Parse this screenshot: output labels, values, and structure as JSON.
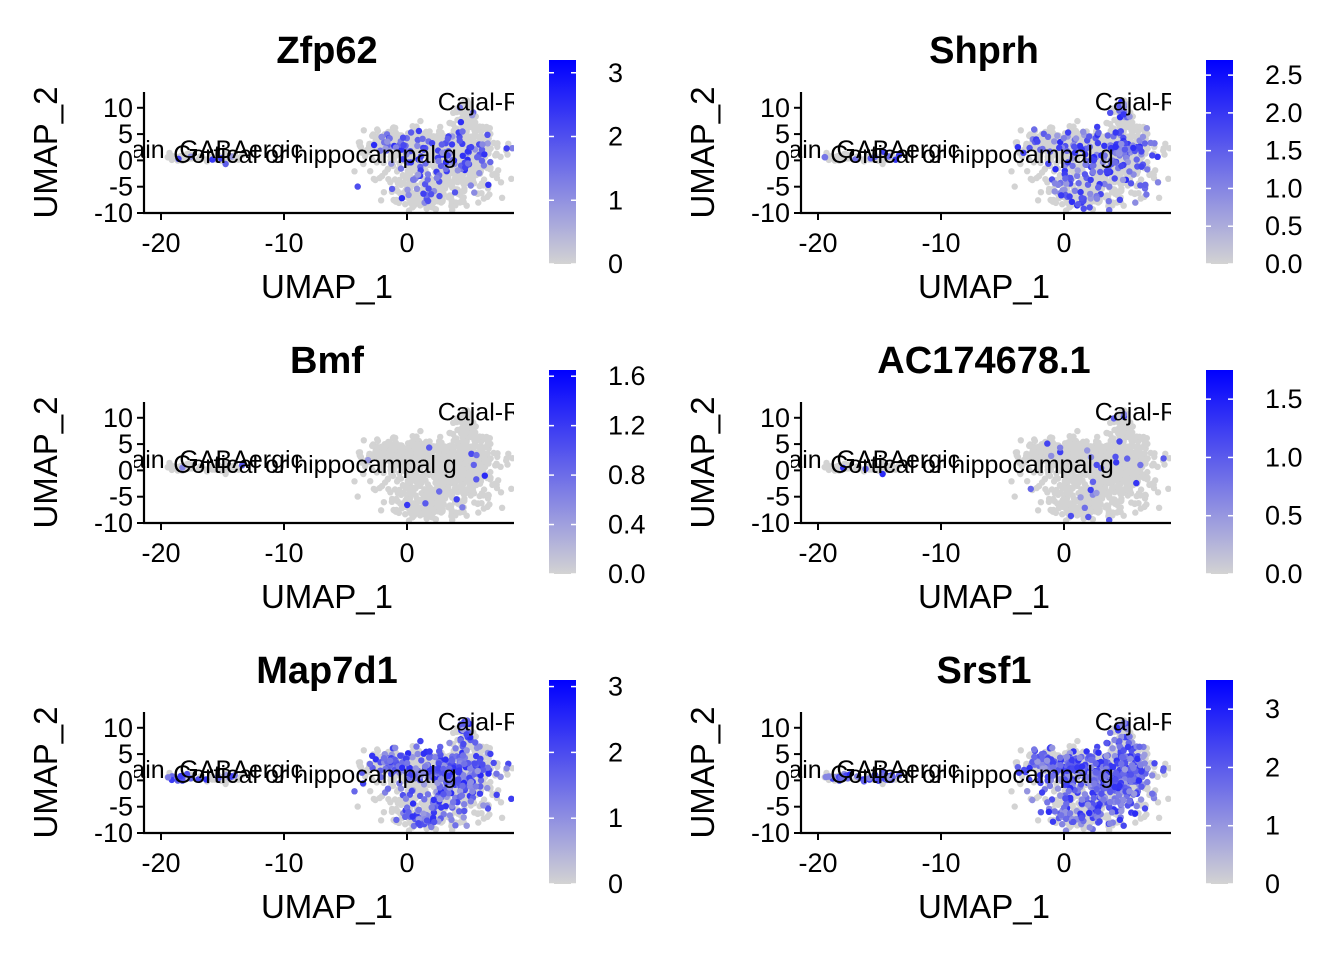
{
  "figure": {
    "type": "feature-plot-grid",
    "gradient_colors": {
      "low": "#d3d3d3",
      "high": "#0000ff"
    },
    "point_color_base": "#d3d3d3"
  },
  "chart_data": [
    {
      "type": "scatter",
      "title": "Zfp62",
      "xlabel": "UMAP_1",
      "ylabel": "UMAP_2",
      "xlim": [
        -22,
        9
      ],
      "ylim": [
        -10,
        13
      ],
      "xticks": [
        -20,
        -10,
        0
      ],
      "yticks": [
        10,
        5,
        0,
        -5,
        -10
      ],
      "cluster_labels": [
        {
          "text": "Cajal-Retz",
          "x": 2.5,
          "y": 9.5
        },
        {
          "text": "Midbrain",
          "x": -27.5,
          "y": 0.5
        },
        {
          "text": "GABAergic",
          "x": -18.5,
          "y": 0.5
        },
        {
          "text": "Cortical or hippocampal g",
          "x": -19.0,
          "y": -0.5
        }
      ],
      "colorbar": {
        "min": 0,
        "max": 3.2,
        "ticks": [
          0,
          1,
          2,
          3
        ],
        "tick_labels": [
          "0",
          "1",
          "2",
          "3"
        ]
      },
      "expression_density": 0.12
    },
    {
      "type": "scatter",
      "title": "Shprh",
      "xlabel": "UMAP_1",
      "ylabel": "UMAP_2",
      "xlim": [
        -22,
        9
      ],
      "ylim": [
        -10,
        13
      ],
      "xticks": [
        -20,
        -10,
        0
      ],
      "yticks": [
        10,
        5,
        0,
        -5,
        -10
      ],
      "cluster_labels": [
        {
          "text": "Cajal-Retz",
          "x": 2.5,
          "y": 9.5
        },
        {
          "text": "Midbrain",
          "x": -27.5,
          "y": 0.5
        },
        {
          "text": "GABAergic",
          "x": -18.5,
          "y": 0.5
        },
        {
          "text": "Cortical or hippocampal g",
          "x": -19.0,
          "y": -0.5
        }
      ],
      "colorbar": {
        "min": 0,
        "max": 2.7,
        "ticks": [
          0,
          0.5,
          1.0,
          1.5,
          2.0,
          2.5
        ],
        "tick_labels": [
          "0.0",
          "0.5",
          "1.0",
          "1.5",
          "2.0",
          "2.5"
        ]
      },
      "expression_density": 0.16
    },
    {
      "type": "scatter",
      "title": "Bmf",
      "xlabel": "UMAP_1",
      "ylabel": "UMAP_2",
      "xlim": [
        -22,
        9
      ],
      "ylim": [
        -10,
        13
      ],
      "xticks": [
        -20,
        -10,
        0
      ],
      "yticks": [
        10,
        5,
        0,
        -5,
        -10
      ],
      "cluster_labels": [
        {
          "text": "Cajal-Retz",
          "x": 2.5,
          "y": 9.5
        },
        {
          "text": "Midbrain",
          "x": -27.5,
          "y": 0.5
        },
        {
          "text": "GABAergic",
          "x": -18.5,
          "y": 0.5
        },
        {
          "text": "Cortical or hippocampal g",
          "x": -19.0,
          "y": -0.5
        }
      ],
      "colorbar": {
        "min": 0,
        "max": 1.65,
        "ticks": [
          0,
          0.4,
          0.8,
          1.2,
          1.6
        ],
        "tick_labels": [
          "0.0",
          "0.4",
          "0.8",
          "1.2",
          "1.6"
        ]
      },
      "expression_density": 0.01
    },
    {
      "type": "scatter",
      "title": "AC174678.1",
      "xlabel": "UMAP_1",
      "ylabel": "UMAP_2",
      "xlim": [
        -22,
        9
      ],
      "ylim": [
        -10,
        13
      ],
      "xticks": [
        -20,
        -10,
        0
      ],
      "yticks": [
        10,
        5,
        0,
        -5,
        -10
      ],
      "cluster_labels": [
        {
          "text": "Cajal-Retz",
          "x": 2.5,
          "y": 9.5
        },
        {
          "text": "Midbrain",
          "x": -27.5,
          "y": 0.5
        },
        {
          "text": "GABAergic",
          "x": -18.5,
          "y": 0.5
        },
        {
          "text": "Cortical or hippocampal g",
          "x": -19.0,
          "y": -0.5
        }
      ],
      "colorbar": {
        "min": 0,
        "max": 1.75,
        "ticks": [
          0,
          0.5,
          1.0,
          1.5
        ],
        "tick_labels": [
          "0.0",
          "0.5",
          "1.0",
          "1.5"
        ]
      },
      "expression_density": 0.02
    },
    {
      "type": "scatter",
      "title": "Map7d1",
      "xlabel": "UMAP_1",
      "ylabel": "UMAP_2",
      "xlim": [
        -22,
        9
      ],
      "ylim": [
        -10,
        13
      ],
      "xticks": [
        -20,
        -10,
        0
      ],
      "yticks": [
        10,
        5,
        0,
        -5,
        -10
      ],
      "cluster_labels": [
        {
          "text": "Cajal-Retz",
          "x": 2.5,
          "y": 9.5
        },
        {
          "text": "Midbrain",
          "x": -27.5,
          "y": 0.5
        },
        {
          "text": "GABAergic",
          "x": -18.5,
          "y": 0.5
        },
        {
          "text": "Cortical or hippocampal g",
          "x": -19.0,
          "y": -0.5
        }
      ],
      "colorbar": {
        "min": 0,
        "max": 3.1,
        "ticks": [
          0,
          1,
          2,
          3
        ],
        "tick_labels": [
          "0",
          "1",
          "2",
          "3"
        ]
      },
      "expression_density": 0.3
    },
    {
      "type": "scatter",
      "title": "Srsf1",
      "xlabel": "UMAP_1",
      "ylabel": "UMAP_2",
      "xlim": [
        -22,
        9
      ],
      "ylim": [
        -10,
        13
      ],
      "xticks": [
        -20,
        -10,
        0
      ],
      "yticks": [
        10,
        5,
        0,
        -5,
        -10
      ],
      "cluster_labels": [
        {
          "text": "Cajal-Retz",
          "x": 2.5,
          "y": 9.5
        },
        {
          "text": "Midbrain",
          "x": -27.5,
          "y": 0.5
        },
        {
          "text": "GABAergic",
          "x": -18.5,
          "y": 0.5
        },
        {
          "text": "Cortical or hippocampal g",
          "x": -19.0,
          "y": -0.5
        }
      ],
      "colorbar": {
        "min": 0,
        "max": 3.5,
        "ticks": [
          0,
          1,
          2,
          3
        ],
        "tick_labels": [
          "0",
          "1",
          "2",
          "3"
        ]
      },
      "expression_density": 0.42
    }
  ]
}
